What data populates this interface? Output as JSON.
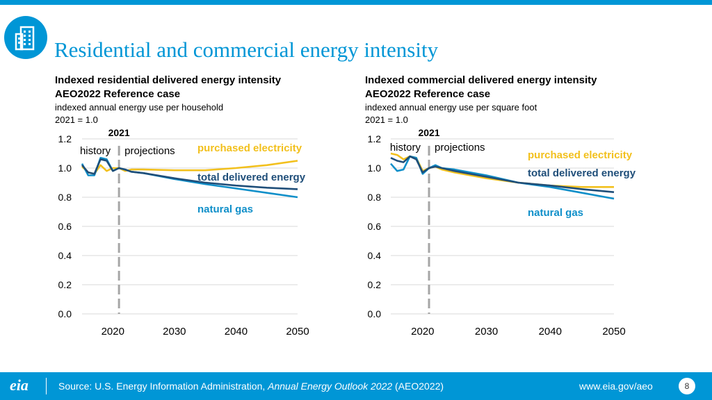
{
  "page": {
    "title": "Residential and commercial energy intensity",
    "logo_icon": "building-icon",
    "colors": {
      "brand": "#0096d6",
      "electricity": "#f2c01d",
      "total": "#1f4e79",
      "gas": "#0f8fc9",
      "grid": "#d9d9d9",
      "marker": "#a6a6a6"
    }
  },
  "footer": {
    "logo_text": "eia",
    "source_prefix": "Source: U.S. Energy Information Administration, ",
    "source_title": "Annual Energy Outlook 2022",
    "source_suffix": " (AEO2022)",
    "url": "www.eia.gov/aeo",
    "page_number": "8"
  },
  "chart_data": [
    {
      "type": "line",
      "title": "Indexed residential delivered energy intensity",
      "subtitle": "AEO2022 Reference case",
      "ylabel": "indexed annual energy use per household",
      "index_note": "2021 = 1.0",
      "xlim": [
        2015,
        2050
      ],
      "ylim": [
        0,
        1.2
      ],
      "yticks": [
        "0.0",
        "0.2",
        "0.4",
        "0.6",
        "0.8",
        "1.0",
        "1.2"
      ],
      "xticks": [
        "2020",
        "2030",
        "2040",
        "2050"
      ],
      "marker": {
        "year": 2021,
        "label": "2021",
        "left_label": "history",
        "right_label": "projections"
      },
      "series": [
        {
          "name": "purchased electricity",
          "color": "#f2c01d",
          "x": [
            2015,
            2016,
            2017,
            2018,
            2019,
            2020,
            2021,
            2022,
            2023,
            2025,
            2030,
            2035,
            2040,
            2045,
            2050
          ],
          "values": [
            1.01,
            0.97,
            0.96,
            1.02,
            0.98,
            1.0,
            1.0,
            0.98,
            0.99,
            0.99,
            0.985,
            0.985,
            1.0,
            1.02,
            1.05
          ]
        },
        {
          "name": "total delivered energy",
          "color": "#1f4e79",
          "x": [
            2015,
            2016,
            2017,
            2018,
            2019,
            2020,
            2021,
            2022,
            2023,
            2025,
            2030,
            2035,
            2040,
            2045,
            2050
          ],
          "values": [
            1.02,
            0.97,
            0.96,
            1.06,
            1.05,
            0.98,
            1.0,
            0.99,
            0.975,
            0.965,
            0.93,
            0.9,
            0.88,
            0.865,
            0.855
          ]
        },
        {
          "name": "natural gas",
          "color": "#0f8fc9",
          "x": [
            2015,
            2016,
            2017,
            2018,
            2019,
            2020,
            2021,
            2022,
            2023,
            2025,
            2030,
            2035,
            2040,
            2045,
            2050
          ],
          "values": [
            1.03,
            0.95,
            0.95,
            1.07,
            1.06,
            0.98,
            1.0,
            0.99,
            0.975,
            0.965,
            0.925,
            0.89,
            0.86,
            0.83,
            0.8
          ]
        }
      ],
      "labels": {
        "electricity": "purchased electricity",
        "total": "total delivered energy",
        "gas": "natural gas"
      }
    },
    {
      "type": "line",
      "title": "Indexed commercial delivered energy intensity",
      "subtitle": "AEO2022 Reference case",
      "ylabel": "indexed annual energy use per square foot",
      "index_note": "2021 = 1.0",
      "xlim": [
        2015,
        2050
      ],
      "ylim": [
        0,
        1.2
      ],
      "yticks": [
        "0.0",
        "0.2",
        "0.4",
        "0.6",
        "0.8",
        "1.0",
        "1.2"
      ],
      "xticks": [
        "2020",
        "2030",
        "2040",
        "2050"
      ],
      "marker": {
        "year": 2021,
        "label": "2021",
        "left_label": "history",
        "right_label": "projections"
      },
      "series": [
        {
          "name": "purchased electricity",
          "color": "#f2c01d",
          "x": [
            2015,
            2016,
            2017,
            2018,
            2019,
            2020,
            2021,
            2022,
            2023,
            2025,
            2030,
            2035,
            2040,
            2045,
            2050
          ],
          "values": [
            1.1,
            1.09,
            1.06,
            1.08,
            1.07,
            0.98,
            1.0,
            1.01,
            0.99,
            0.97,
            0.93,
            0.9,
            0.88,
            0.87,
            0.87
          ]
        },
        {
          "name": "total delivered energy",
          "color": "#1f4e79",
          "x": [
            2015,
            2016,
            2017,
            2018,
            2019,
            2020,
            2021,
            2022,
            2023,
            2025,
            2030,
            2035,
            2040,
            2045,
            2050
          ],
          "values": [
            1.07,
            1.05,
            1.04,
            1.08,
            1.06,
            0.97,
            1.0,
            1.01,
            1.0,
            0.98,
            0.94,
            0.9,
            0.88,
            0.855,
            0.835
          ]
        },
        {
          "name": "natural gas",
          "color": "#0f8fc9",
          "x": [
            2015,
            2016,
            2017,
            2018,
            2019,
            2020,
            2021,
            2022,
            2023,
            2025,
            2030,
            2035,
            2040,
            2045,
            2050
          ],
          "values": [
            1.03,
            0.98,
            0.99,
            1.08,
            1.07,
            0.96,
            1.0,
            1.02,
            1.0,
            0.99,
            0.95,
            0.9,
            0.87,
            0.83,
            0.79
          ]
        }
      ],
      "labels": {
        "electricity": "purchased electricity",
        "total": "total delivered energy",
        "gas": "natural gas"
      }
    }
  ]
}
